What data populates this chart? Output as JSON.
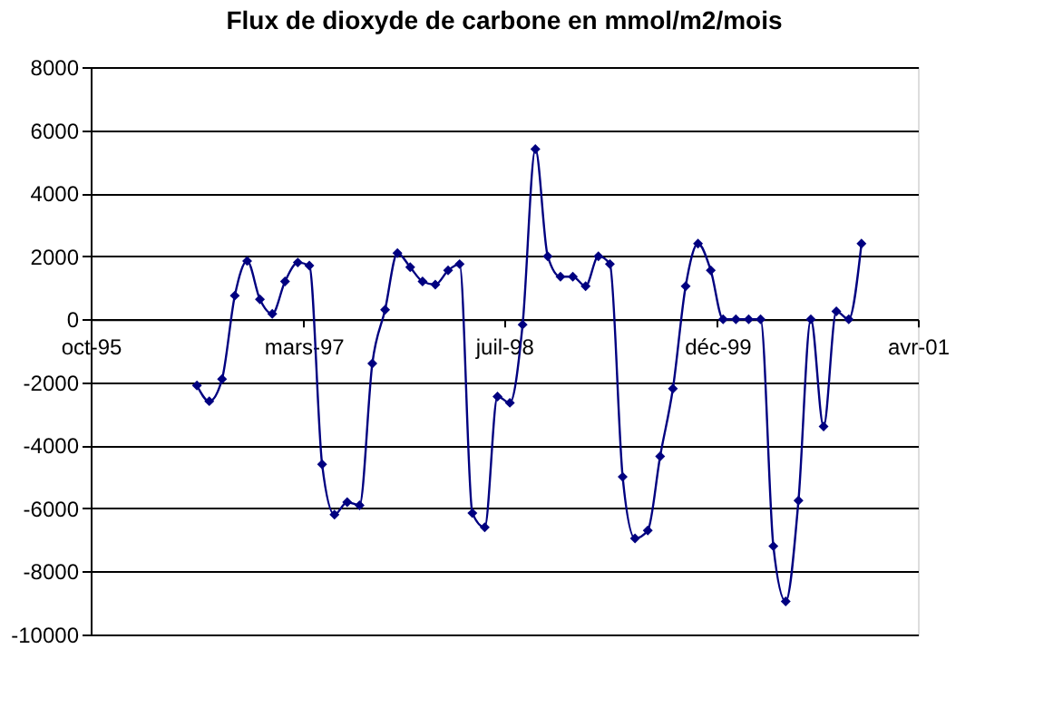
{
  "chart_data": {
    "type": "line",
    "title": "Flux de dioxyde de carbone en mmol/m2/mois",
    "x": [
      "1996-06-15",
      "1996-07-15",
      "1996-08-15",
      "1996-09-15",
      "1996-10-15",
      "1996-11-15",
      "1996-12-15",
      "1997-01-15",
      "1997-02-15",
      "1997-03-15",
      "1997-04-15",
      "1997-05-15",
      "1997-06-15",
      "1997-07-15",
      "1997-08-15",
      "1997-09-15",
      "1997-10-15",
      "1997-11-15",
      "1997-12-15",
      "1998-01-15",
      "1998-02-15",
      "1998-03-15",
      "1998-04-15",
      "1998-05-15",
      "1998-06-15",
      "1998-07-15",
      "1998-08-15",
      "1998-09-15",
      "1998-10-15",
      "1998-11-15",
      "1998-12-15",
      "1999-01-15",
      "1999-02-15",
      "1999-03-15",
      "1999-04-15",
      "1999-05-15",
      "1999-06-15",
      "1999-07-15",
      "1999-08-15",
      "1999-09-15",
      "1999-10-15",
      "1999-11-15",
      "1999-12-15",
      "2000-01-15",
      "2000-02-15",
      "2000-03-15",
      "2000-04-15",
      "2000-05-15",
      "2000-06-15",
      "2000-07-15",
      "2000-08-15",
      "2000-09-15",
      "2000-10-15",
      "2000-11-15"
    ],
    "series": [
      {
        "color": "#000080",
        "values": [
          -2100,
          -2600,
          -1900,
          750,
          1850,
          630,
          170,
          1200,
          1800,
          1700,
          -4600,
          -6200,
          -5800,
          -5900,
          -1400,
          300,
          2100,
          1650,
          1200,
          1100,
          1550,
          1750,
          -6150,
          -6600,
          -2450,
          -2650,
          -170,
          5400,
          2000,
          1350,
          1350,
          1050,
          2000,
          1750,
          -5000,
          -6950,
          -6700,
          -4350,
          -2200,
          1050,
          2400,
          1550,
          0,
          0,
          0,
          0,
          -7200,
          -8950,
          -5750,
          0,
          -3400,
          250,
          0,
          2400
        ]
      }
    ],
    "xlim": [
      "1995-10-01",
      "2001-04-01"
    ],
    "xticks": [
      {
        "value": "1995-10-01",
        "label": "oct-95"
      },
      {
        "value": "1997-03-01",
        "label": "mars-97"
      },
      {
        "value": "1998-07-01",
        "label": "juil-98"
      },
      {
        "value": "1999-12-01",
        "label": "déc-99"
      },
      {
        "value": "2001-04-01",
        "label": "avr-01"
      }
    ],
    "ylim": [
      -10000,
      8000
    ],
    "yticks": [
      -10000,
      -8000,
      -6000,
      -4000,
      -2000,
      0,
      2000,
      4000,
      6000,
      8000
    ],
    "grid": "y",
    "marker": "diamond",
    "line_style": "solid"
  }
}
